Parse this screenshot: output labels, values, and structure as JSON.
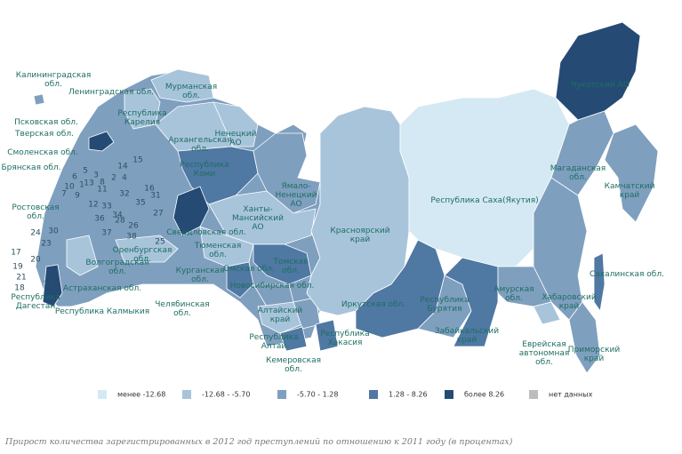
{
  "map": {
    "regions": [
      [
        "Калининградская",
        "обл."
      ],
      [
        "Ленинградская обл."
      ],
      [
        "Мурманская",
        "обл."
      ],
      [
        "Республика",
        "Карелия"
      ],
      [
        "Псковская обл."
      ],
      [
        "Тверская обл."
      ],
      [
        "Архангельская",
        "обл."
      ],
      [
        "Ненецкий",
        "АО"
      ],
      [
        "Смоленская обл."
      ],
      [
        "Брянская обл."
      ],
      [
        "Республика",
        "Коми"
      ],
      [
        "Ямало-",
        "Ненецкий",
        "АО"
      ],
      [
        "Красноярский",
        "край"
      ],
      [
        "Республика Саха(Якутия)"
      ],
      [
        "Чукотский АО"
      ],
      [
        "Магаданская",
        "обл."
      ],
      [
        "Камчатский",
        "край"
      ],
      [
        "Ростовская",
        "обл."
      ],
      [
        "Ханты-",
        "Мансийский",
        "АО"
      ],
      [
        "Свердловская обл."
      ],
      [
        "Тюменская",
        "обл."
      ],
      [
        "Оренбургская",
        "обл."
      ],
      [
        "Волгоградская",
        "обл."
      ],
      [
        "Курганская",
        "обл."
      ],
      [
        "Омская обл."
      ],
      [
        "Томская",
        "обл."
      ],
      [
        "Новосибирская обл."
      ],
      [
        "Астраханская обл."
      ],
      [
        "Республика",
        "Дагестан"
      ],
      [
        "Республика Калмыкия"
      ],
      [
        "Челябинская",
        "обл."
      ],
      [
        "Алтайский",
        "край"
      ],
      [
        "Иркутская обл."
      ],
      [
        "Республика",
        "Бурятия"
      ],
      [
        "Амурская",
        "обл."
      ],
      [
        "Сахалинская обл."
      ],
      [
        "Хабаровский",
        "край"
      ],
      [
        "Забайкальский",
        "край"
      ],
      [
        "Республика",
        "Алтай"
      ],
      [
        "Республика",
        "Хакасия"
      ],
      [
        "Кемеровская",
        "обл."
      ],
      [
        "Еврейская",
        "автономная",
        "обл."
      ],
      [
        "Приморский",
        "край"
      ]
    ],
    "region_numbers": [
      "15",
      "14",
      "5",
      "3",
      "2",
      "4",
      "6",
      "13",
      "11",
      "9",
      "12",
      "32",
      "33",
      "34",
      "35",
      "36",
      "26",
      "28",
      "31",
      "37",
      "38",
      "25",
      "30",
      "27",
      "24",
      "23",
      "22",
      "17",
      "19",
      "20",
      "21",
      "18",
      "7",
      "8",
      "1",
      "10",
      "16"
    ]
  },
  "legend": {
    "items": [
      {
        "label": "менее -12.68",
        "color": "#d4e9f3"
      },
      {
        "label": "-12.68 - -5.70",
        "color": "#a8c4db"
      },
      {
        "label": "-5.70 - 1.28",
        "color": "#7f9fbf"
      },
      {
        "label": "1.28 - 8.26",
        "color": "#4f78a3"
      },
      {
        "label": "более 8.26",
        "color": "#254b75"
      },
      {
        "label": "нет данных",
        "color": "#bdbdbd"
      }
    ]
  },
  "caption": "Прирост количества зарегистрированных в 2012 год преступлений по отношению к 2011 году (в процентах)"
}
